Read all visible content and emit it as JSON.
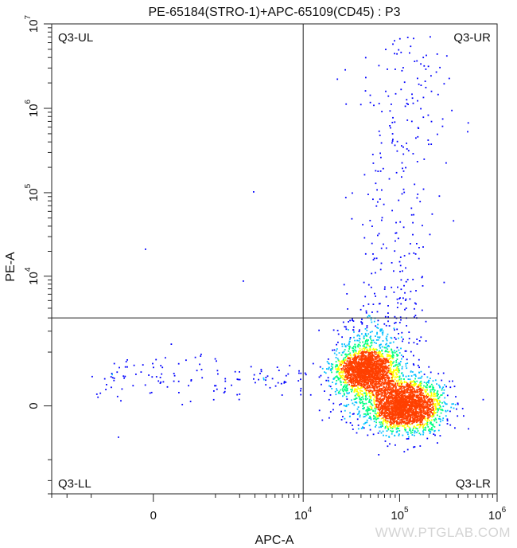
{
  "chart_data": {
    "type": "scatter",
    "title": "PE-65184(STRO-1)+APC-65109(CD45) : P3",
    "xlabel": "APC-A",
    "ylabel": "PE-A",
    "x_scale": "biexponential",
    "y_scale": "biexponential",
    "xlim": [
      -3000,
      1000000
    ],
    "ylim": [
      -3000,
      10000000
    ],
    "x_ticks": [
      {
        "base": "0",
        "exp": ""
      },
      {
        "base": "10",
        "exp": "4"
      },
      {
        "base": "10",
        "exp": "5"
      },
      {
        "base": "10",
        "exp": "6"
      }
    ],
    "y_ticks": [
      {
        "base": "0",
        "exp": ""
      },
      {
        "base": "10",
        "exp": "4"
      },
      {
        "base": "10",
        "exp": "5"
      },
      {
        "base": "10",
        "exp": "6"
      },
      {
        "base": "10",
        "exp": "7"
      }
    ],
    "gate": {
      "x_threshold": 10000,
      "y_threshold": 3000
    },
    "quadrants": [
      "Q3-UL",
      "Q3-UR",
      "Q3-LL",
      "Q3-LR"
    ],
    "populations": [
      {
        "name": "",
        "center_apc": 45000,
        "center_pe": 500,
        "density": "high"
      },
      {
        "name": "",
        "center_apc": 115000,
        "center_pe": 0,
        "density": "high"
      },
      {
        "name": "",
        "center_apc": 70000,
        "center_pe": 100000,
        "density": "sparse"
      }
    ],
    "colormap": [
      "#0000ff",
      "#00bfff",
      "#00ff80",
      "#ffff00",
      "#ff4000"
    ],
    "watermark": "WWW.PTGLAB.COM"
  }
}
